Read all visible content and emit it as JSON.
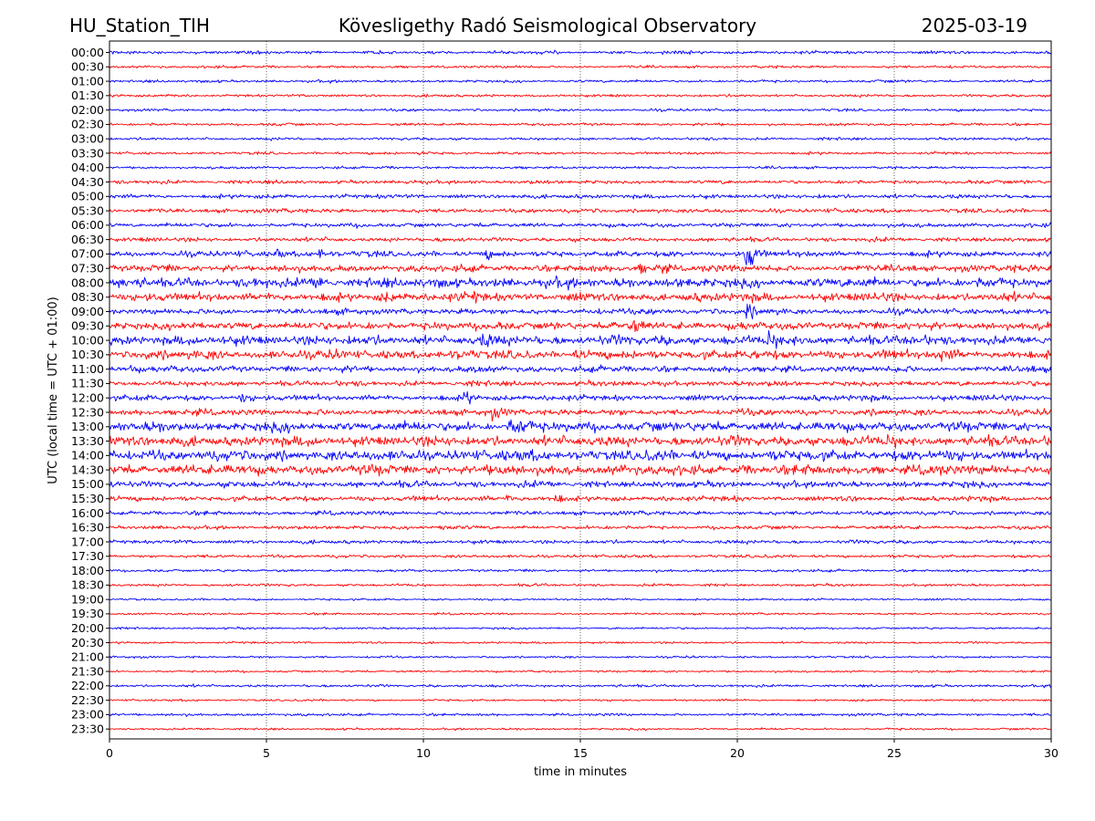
{
  "header": {
    "station": "HU_Station_TIH",
    "title": "Kövesligethy Radó Seismological Observatory",
    "date": "2025-03-19"
  },
  "chart_data": {
    "type": "line",
    "xlabel": "time in minutes",
    "ylabel": "UTC (local time = UTC + 01:00)",
    "xlim": [
      0,
      30
    ],
    "x_ticks": [
      "0",
      "5",
      "10",
      "15",
      "20",
      "25",
      "30"
    ],
    "x_tick_values": [
      0,
      5,
      10,
      15,
      20,
      25,
      30
    ],
    "grid": "vertical dotted at x ticks",
    "trace_colors": [
      "#0000ff",
      "#ff0000"
    ],
    "rows": [
      "00:00",
      "00:30",
      "01:00",
      "01:30",
      "02:00",
      "02:30",
      "03:00",
      "03:30",
      "04:00",
      "04:30",
      "05:00",
      "05:30",
      "06:00",
      "06:30",
      "07:00",
      "07:30",
      "08:00",
      "08:30",
      "09:00",
      "09:30",
      "10:00",
      "10:30",
      "11:00",
      "11:30",
      "12:00",
      "12:30",
      "13:00",
      "13:30",
      "14:00",
      "14:30",
      "15:00",
      "15:30",
      "16:00",
      "16:30",
      "17:00",
      "17:30",
      "18:00",
      "18:30",
      "19:00",
      "19:30",
      "20:00",
      "20:30",
      "21:00",
      "21:30",
      "22:00",
      "22:30",
      "23:00",
      "23:30"
    ],
    "relative_noise_amplitude": [
      0.6,
      0.5,
      0.5,
      0.5,
      0.5,
      0.5,
      0.5,
      0.5,
      0.5,
      0.7,
      0.8,
      0.8,
      0.8,
      0.8,
      1.1,
      1.3,
      1.8,
      1.6,
      1.1,
      1.5,
      1.8,
      1.7,
      1.2,
      1.0,
      1.1,
      1.2,
      1.8,
      1.9,
      2.0,
      1.9,
      1.2,
      1.0,
      0.8,
      0.7,
      0.7,
      0.6,
      0.5,
      0.5,
      0.4,
      0.4,
      0.4,
      0.4,
      0.4,
      0.4,
      0.5,
      0.4,
      0.5,
      0.4
    ],
    "events": [
      {
        "row": "03:30",
        "x_min": 9.9,
        "amplitude": 2.2
      },
      {
        "row": "07:00",
        "x_min": 5.3,
        "amplitude": 5.0
      },
      {
        "row": "07:00",
        "x_min": 6.7,
        "amplitude": 4.0
      },
      {
        "row": "07:00",
        "x_min": 12.0,
        "amplitude": 3.0
      },
      {
        "row": "07:00",
        "x_min": 20.3,
        "amplitude": 22.0
      },
      {
        "row": "07:30",
        "x_min": 16.9,
        "amplitude": 4.0
      },
      {
        "row": "07:30",
        "x_min": 17.5,
        "amplitude": 6.0
      },
      {
        "row": "08:00",
        "x_min": 6.6,
        "amplitude": 4.0
      },
      {
        "row": "08:30",
        "x_min": 8.7,
        "amplitude": 4.0
      },
      {
        "row": "08:30",
        "x_min": 11.6,
        "amplitude": 3.5
      },
      {
        "row": "09:00",
        "x_min": 20.3,
        "amplitude": 8.0
      },
      {
        "row": "09:30",
        "x_min": 16.7,
        "amplitude": 6.0
      },
      {
        "row": "10:00",
        "x_min": 11.9,
        "amplitude": 5.0
      },
      {
        "row": "10:00",
        "x_min": 21.0,
        "amplitude": 7.0
      },
      {
        "row": "10:30",
        "x_min": 26.5,
        "amplitude": 4.0
      },
      {
        "row": "11:00",
        "x_min": 0.7,
        "amplitude": 4.0
      },
      {
        "row": "12:00",
        "x_min": 11.3,
        "amplitude": 7.5
      },
      {
        "row": "12:00",
        "x_min": 4.2,
        "amplitude": 3.5
      },
      {
        "row": "12:30",
        "x_min": 12.2,
        "amplitude": 4.0
      },
      {
        "row": "13:00",
        "x_min": 12.8,
        "amplitude": 7.0
      },
      {
        "row": "13:00",
        "x_min": 13.1,
        "amplitude": 5.0
      },
      {
        "row": "13:30",
        "x_min": 24.8,
        "amplitude": 4.0
      },
      {
        "row": "15:30",
        "x_min": 14.2,
        "amplitude": 4.5
      },
      {
        "row": "15:30",
        "x_min": 12.7,
        "amplitude": 3.0
      },
      {
        "row": "16:30",
        "x_min": 10.6,
        "amplitude": 4.0
      }
    ]
  }
}
